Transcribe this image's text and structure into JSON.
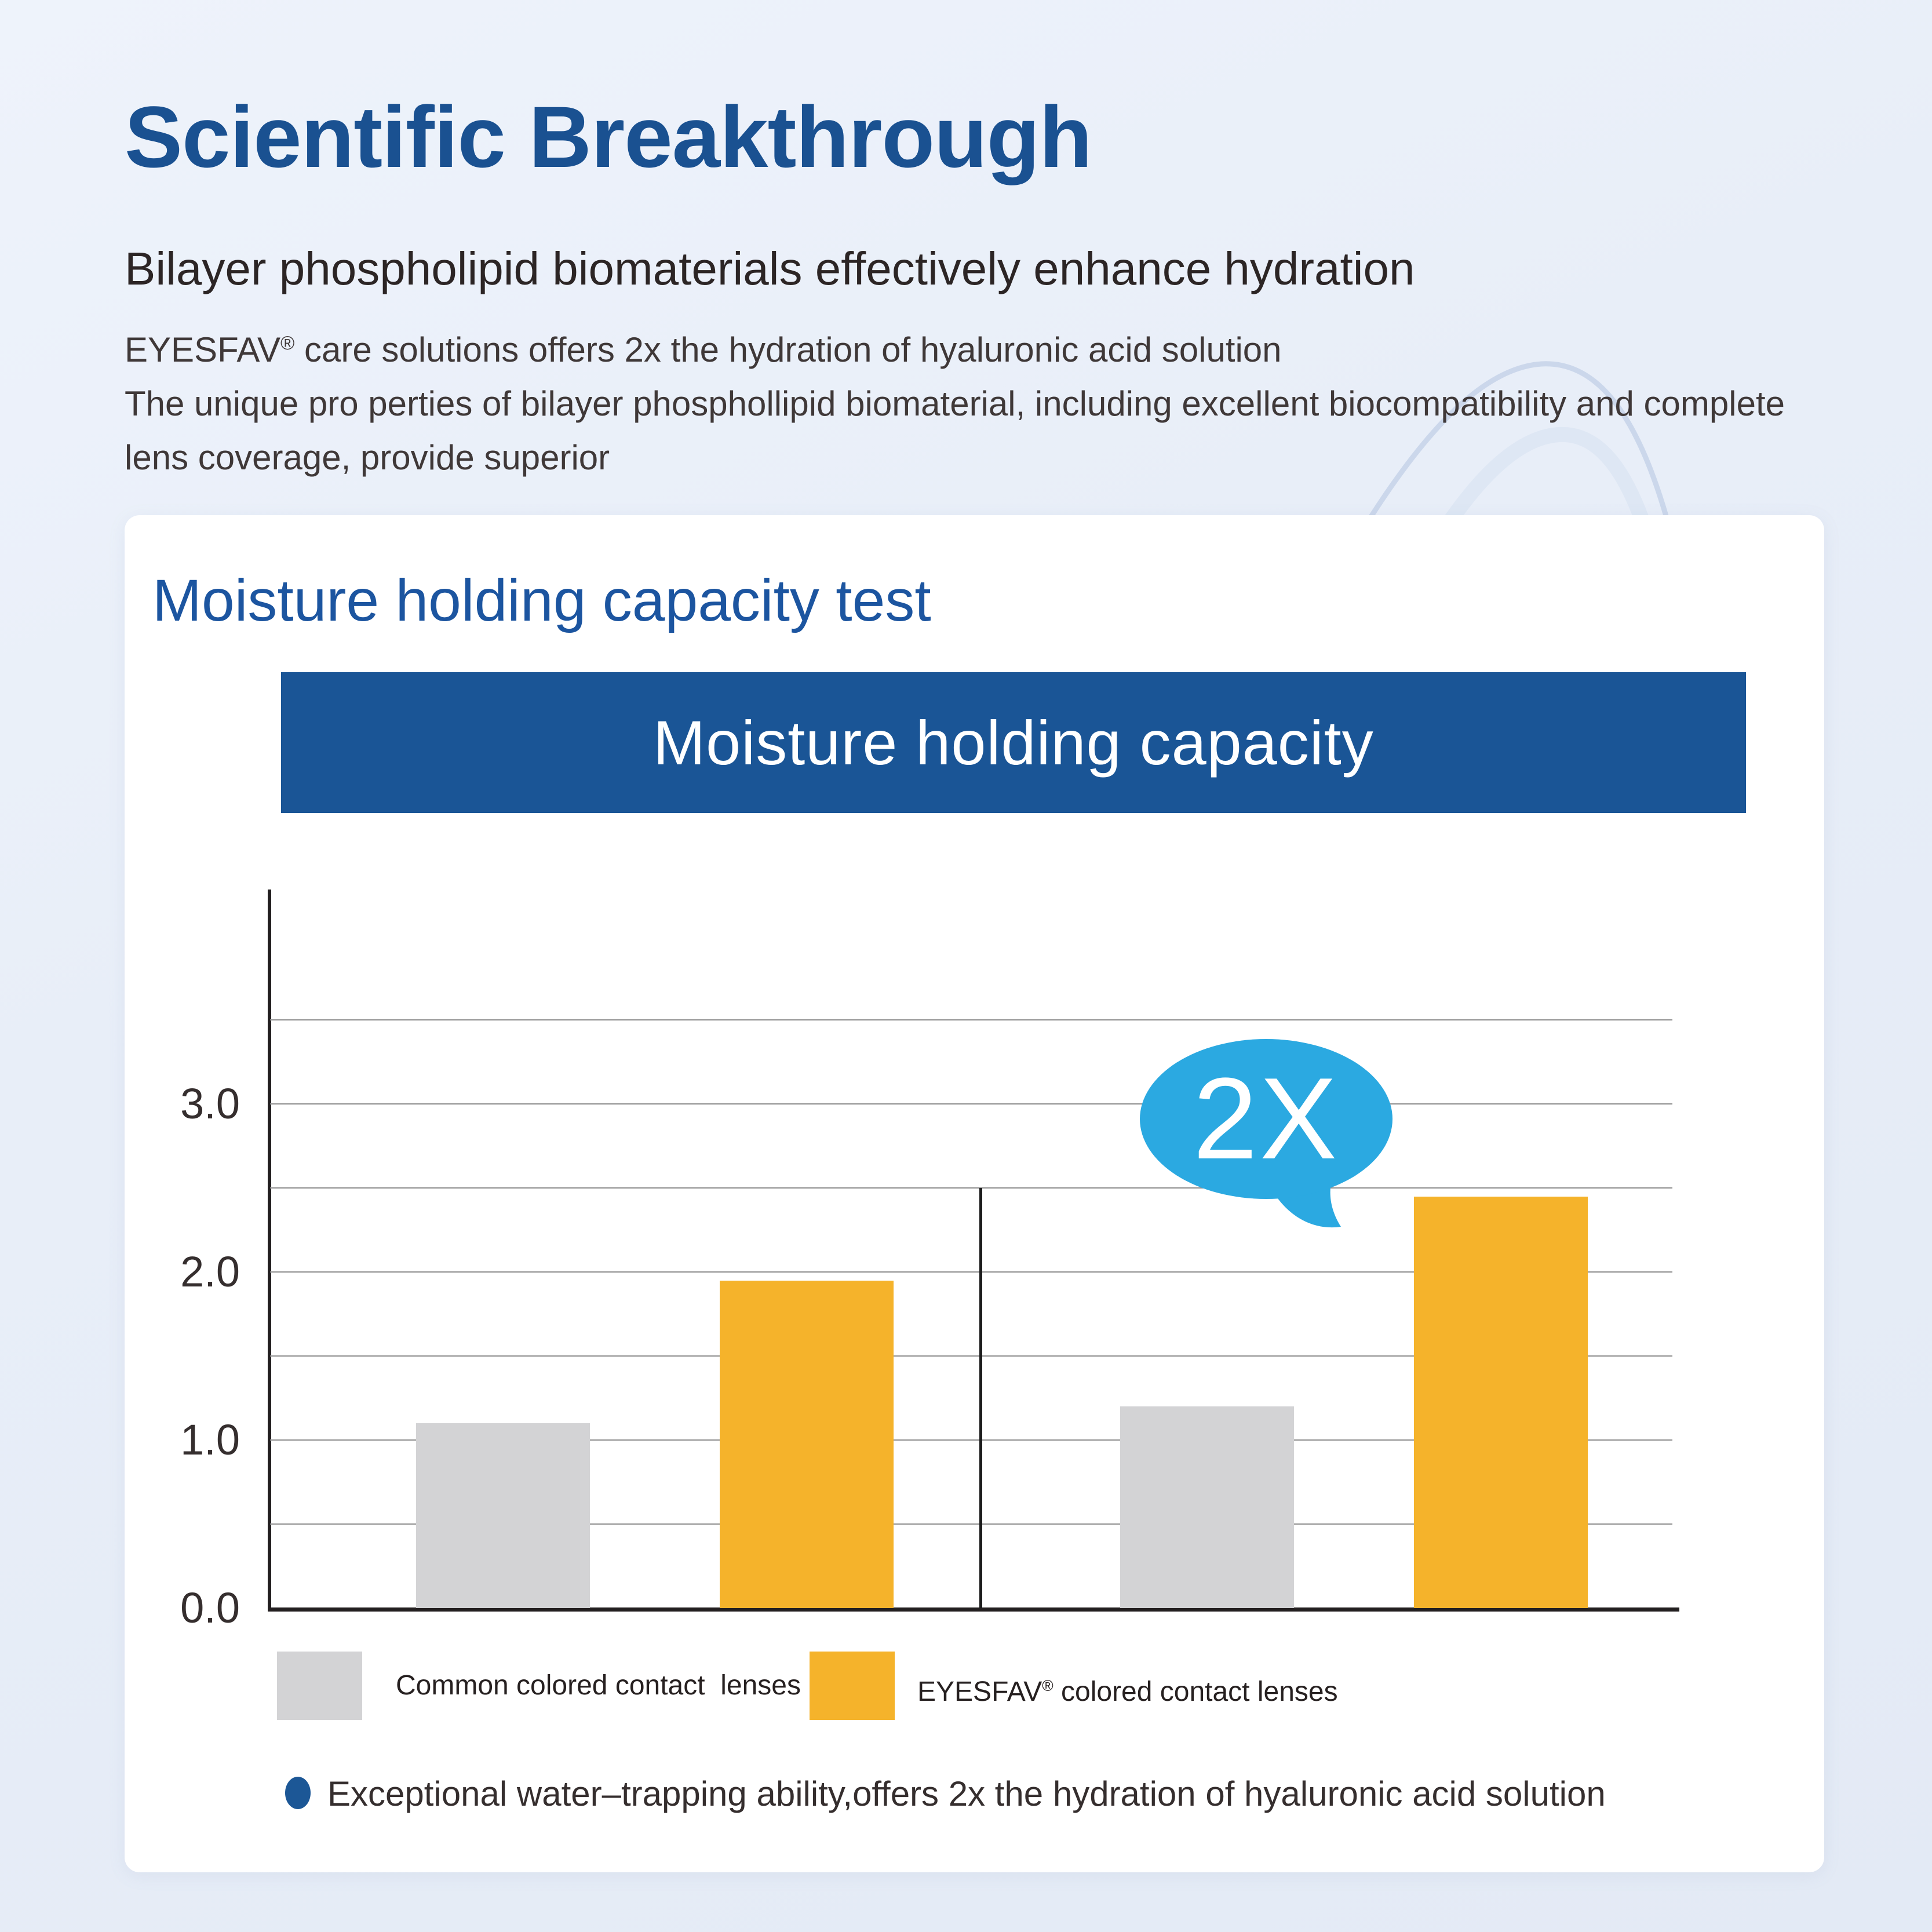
{
  "header": {
    "title": "Scientific Breakthrough",
    "subtitle": "Bilayer phospholipid biomaterials effectively enhance hydration",
    "intro_lines": [
      "EYESFAV® care solutions offers 2x the hydration of hyaluronic acid solution",
      "The unique pro perties of bilayer phosphollipid biomaterial, including excellent biocompatibility and complete",
      "lens coverage, provide superior"
    ]
  },
  "card": {
    "panel_title": "Moisture holding capacity test",
    "banner_title": "Moisture holding capacity",
    "footnote": "Exceptional water–trapping ability,offers 2x the hydration of hyaluronic acid solution"
  },
  "chart_data": {
    "type": "bar",
    "title": "Moisture holding capacity",
    "xlabel": "",
    "ylabel": "",
    "ylim": [
      0,
      3.5
    ],
    "gridline_step": 0.5,
    "grid": true,
    "yticks": [
      0,
      1,
      2,
      3
    ],
    "categories": [
      "",
      ""
    ],
    "series": [
      {
        "name": "Common colored contact  lenses",
        "color": "#d3d3d5",
        "values": [
          1.1,
          1.2
        ]
      },
      {
        "name": "EYESFAV® colored contact lenses",
        "color": "#f5b32b",
        "values": [
          1.95,
          2.45
        ]
      }
    ],
    "annotation": {
      "text": "2X",
      "color": "#2ba9e1"
    },
    "legend_position": "bottom"
  },
  "colors": {
    "page_background": "#e8eef8",
    "card_background": "#ffffff",
    "title_blue": "#1a5191",
    "panel_title_blue": "#1c55a0",
    "banner_blue": "#1a5596",
    "bar_gray": "#d3d3d5",
    "bar_yellow": "#f5b32b",
    "bubble_blue": "#2ba9e1",
    "axis_dark": "#231f20",
    "bullet_blue": "#1c5796"
  }
}
